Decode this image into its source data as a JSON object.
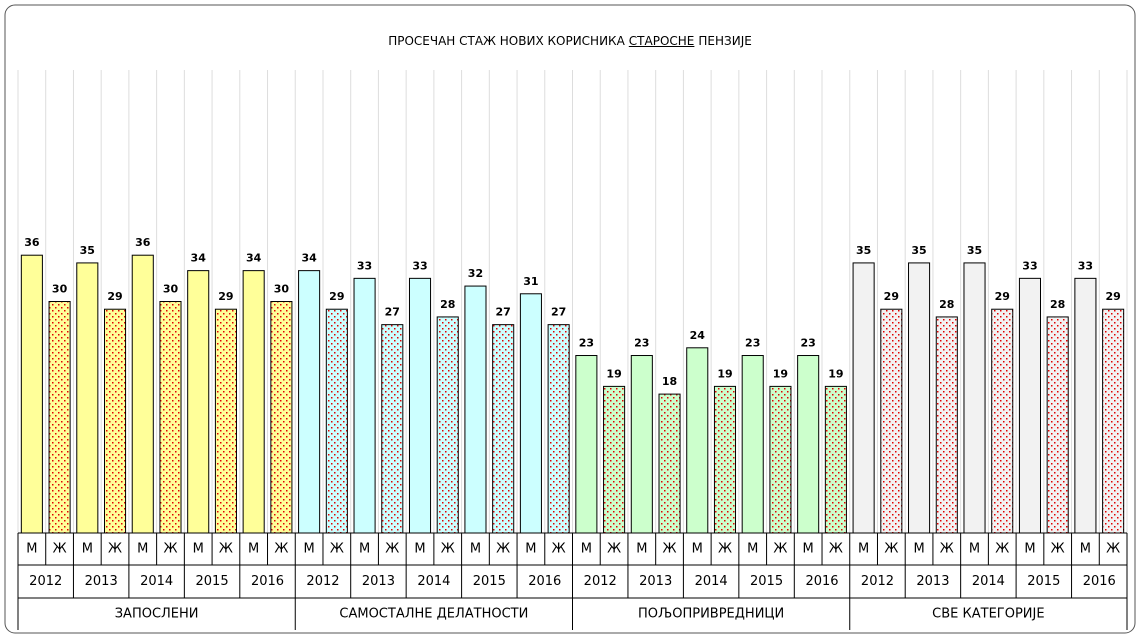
{
  "chart_data": {
    "type": "bar",
    "title": [
      "ПРОСЕЧАН СТАЖ НОВИХ КОРИСНИКА",
      "СТАРОСНЕ",
      "ПЕНЗИЈЕ"
    ],
    "sexes": [
      "М",
      "Ж"
    ],
    "ylim": [
      0,
      60
    ],
    "dot_color": "#e00000",
    "groups": [
      {
        "name": "ЗАПОСЛЕНИ",
        "color": "#ffff99",
        "years": [
          "2012",
          "2013",
          "2014",
          "2015",
          "2016"
        ],
        "values": [
          [
            36,
            30
          ],
          [
            35,
            29
          ],
          [
            36,
            30
          ],
          [
            34,
            29
          ],
          [
            34,
            30
          ]
        ]
      },
      {
        "name": "САМОСТАЛНЕ ДЕЛАТНОСТИ",
        "color": "#ccffff",
        "years": [
          "2012",
          "2013",
          "2014",
          "2015",
          "2016"
        ],
        "values": [
          [
            34,
            29
          ],
          [
            33,
            27
          ],
          [
            33,
            28
          ],
          [
            32,
            27
          ],
          [
            31,
            27
          ]
        ]
      },
      {
        "name": "ПОЉОПРИВРЕДНИЦИ",
        "color": "#ccffcc",
        "years": [
          "2012",
          "2013",
          "2014",
          "2015",
          "2016"
        ],
        "values": [
          [
            23,
            19
          ],
          [
            23,
            18
          ],
          [
            24,
            19
          ],
          [
            23,
            19
          ],
          [
            23,
            19
          ]
        ]
      },
      {
        "name": "СВЕ КАТЕГОРИЈЕ",
        "color": "#f2f2f2",
        "years": [
          "2012",
          "2013",
          "2014",
          "2015",
          "2016"
        ],
        "values": [
          [
            35,
            29
          ],
          [
            35,
            28
          ],
          [
            35,
            29
          ],
          [
            33,
            28
          ],
          [
            33,
            29
          ]
        ]
      }
    ]
  }
}
